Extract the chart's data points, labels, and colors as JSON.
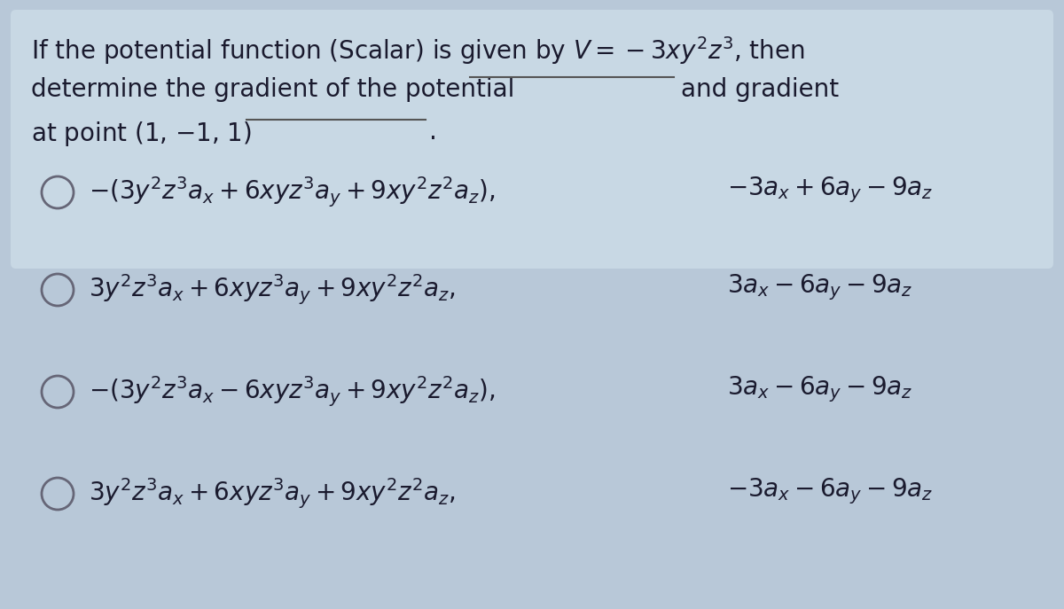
{
  "bg_color": "#b8c8d8",
  "box_color": "#c8d8e4",
  "text_color": "#1a1a2e",
  "figsize": [
    12.0,
    6.87
  ],
  "dpi": 100,
  "q_line1": "If the potential function (Scalar) is given by $V = -3xy^2z^3$, then",
  "q_line2_a": "determine the gradient of the potential",
  "q_line2_b": "and gradient",
  "q_line3": "at point (1, −1, 1)",
  "options": [
    [
      "$-(3y^2z^3a_x + 6xyz^3a_y + 9xy^2z^2a_z)$,",
      "$-3a_x + 6a_y - 9a_z$"
    ],
    [
      "$3y^2z^3a_x + 6xyz^3a_y + 9xy^2z^2a_z$,",
      "$3a_x - 6a_y - 9a_z$"
    ],
    [
      "$-(3y^2z^3a_x - 6xyz^3a_y + 9xy^2z^2a_z)$,",
      "$3a_x - 6a_y - 9a_z$"
    ],
    [
      "$3y^2z^3a_x + 6xyz^3a_y + 9xy^2z^2a_z$,",
      "$-3a_x - 6a_y - 9a_z$"
    ]
  ]
}
